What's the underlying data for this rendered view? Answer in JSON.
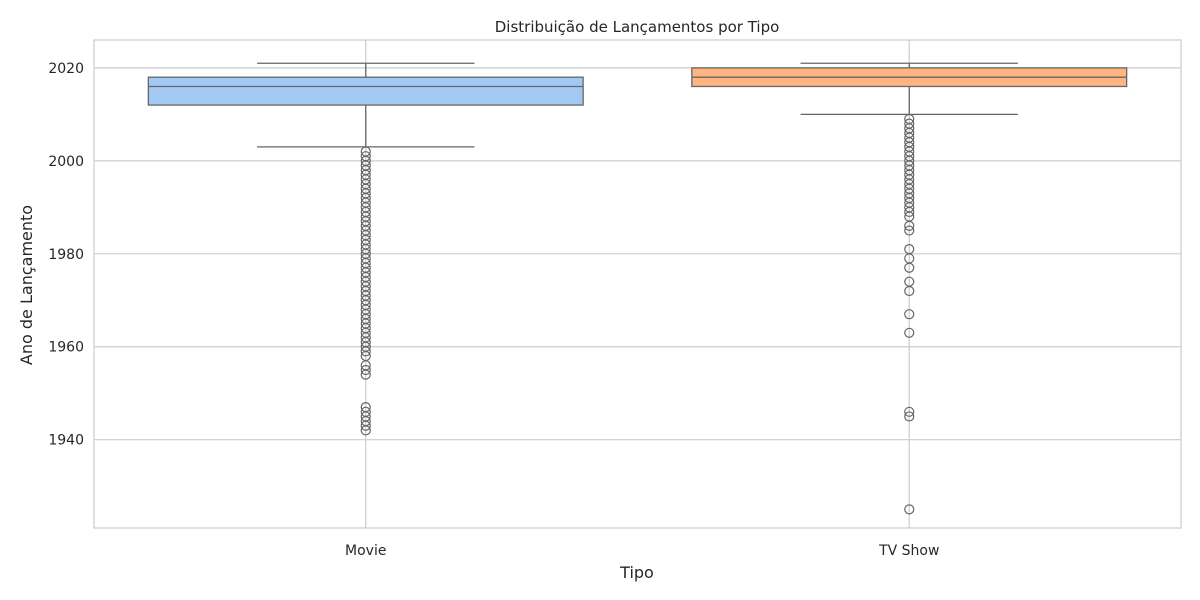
{
  "chart_data": {
    "type": "box",
    "title": "Distribuição de Lançamentos por Tipo",
    "xlabel": "Tipo",
    "ylabel": "Ano de Lançamento",
    "ylim": [
      1921,
      2026
    ],
    "yticks": [
      1940,
      1960,
      1980,
      2000,
      2020
    ],
    "grid": true,
    "categories": [
      "Movie",
      "TV Show"
    ],
    "series": [
      {
        "category": "Movie",
        "color": "#a1c9f4",
        "whisker_low": 2003,
        "q1": 2012,
        "median": 2016,
        "q3": 2018,
        "whisker_high": 2021,
        "outliers": [
          2002,
          2001,
          2000,
          1999,
          1998,
          1997,
          1996,
          1995,
          1994,
          1993,
          1992,
          1991,
          1990,
          1989,
          1988,
          1987,
          1986,
          1985,
          1984,
          1983,
          1982,
          1981,
          1980,
          1979,
          1978,
          1977,
          1976,
          1975,
          1974,
          1973,
          1972,
          1971,
          1970,
          1969,
          1968,
          1967,
          1966,
          1965,
          1964,
          1963,
          1962,
          1961,
          1960,
          1959,
          1958,
          1956,
          1955,
          1954,
          1947,
          1946,
          1945,
          1944,
          1943,
          1942
        ]
      },
      {
        "category": "TV Show",
        "color": "#ffb482",
        "whisker_low": 2010,
        "q1": 2016,
        "median": 2018,
        "q3": 2020,
        "whisker_high": 2021,
        "outliers": [
          2009,
          2008,
          2007,
          2006,
          2005,
          2004,
          2003,
          2002,
          2001,
          2000,
          1999,
          1998,
          1997,
          1996,
          1995,
          1994,
          1993,
          1992,
          1991,
          1990,
          1989,
          1988,
          1986,
          1985,
          1981,
          1979,
          1977,
          1974,
          1972,
          1967,
          1963,
          1946,
          1945,
          1925
        ]
      }
    ]
  }
}
